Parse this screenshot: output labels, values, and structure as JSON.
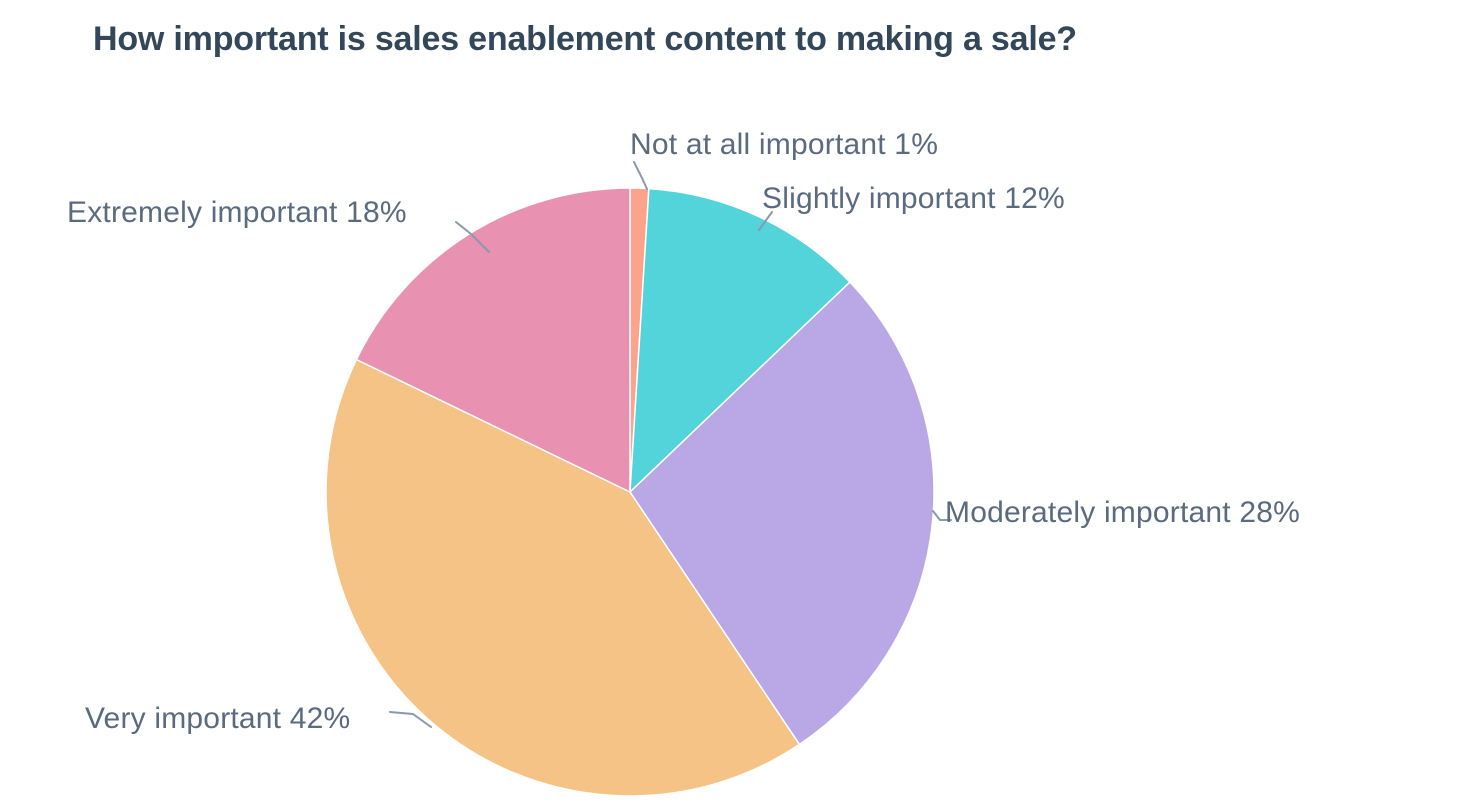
{
  "chart_data": {
    "type": "pie",
    "title": "How important is sales enablement content to making a sale?",
    "categories": [
      "Not at all important",
      "Slightly important",
      "Moderately important",
      "Very important",
      "Extremely important"
    ],
    "values": [
      1,
      12,
      28,
      42,
      18
    ],
    "unit": "%",
    "direction": "clockwise",
    "start_angle_deg": 0,
    "legend": "none",
    "colors": [
      "#FCA48B",
      "#53D3DA",
      "#B9A7E6",
      "#F4C385",
      "#E991B1"
    ],
    "title_color": "#33475B",
    "label_color": "#5A6A7F",
    "leader_color": "#8A99AB",
    "background_color": "#FFFFFF",
    "labels": [
      {
        "text": "Not at all important 1%"
      },
      {
        "text": "Slightly important 12%"
      },
      {
        "text": "Moderately important 28%"
      },
      {
        "text": "Very important 42%"
      },
      {
        "text": "Extremely important 18%"
      }
    ]
  }
}
